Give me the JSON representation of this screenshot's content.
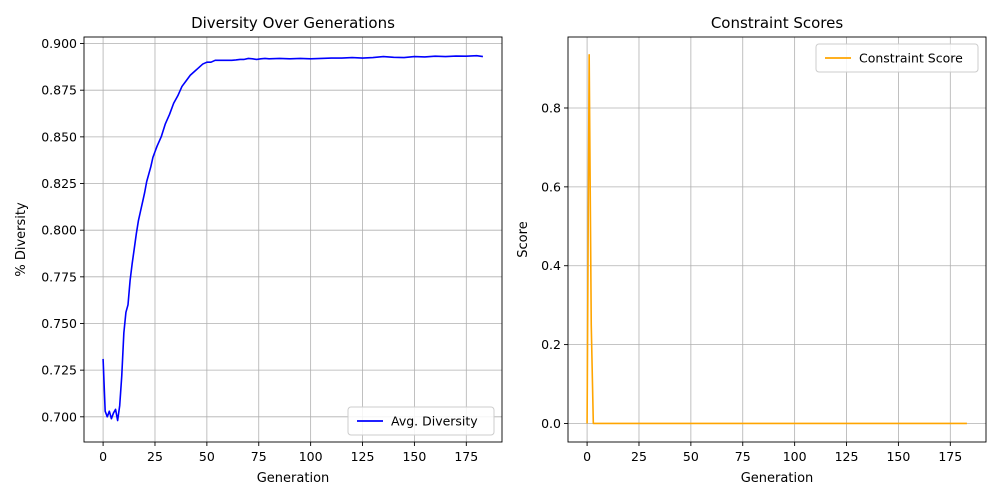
{
  "chart_data": [
    {
      "type": "line",
      "title": "Diversity Over Generations",
      "xlabel": "Generation",
      "ylabel": "% Diversity",
      "xlim": [
        -9.2,
        192.2
      ],
      "ylim": [
        0.6865,
        0.9035
      ],
      "xticks": [
        0,
        25,
        50,
        75,
        100,
        125,
        150,
        175
      ],
      "yticks": [
        0.7,
        0.725,
        0.75,
        0.775,
        0.8,
        0.825,
        0.85,
        0.875,
        0.9
      ],
      "ytick_labels": [
        "0.700",
        "0.725",
        "0.750",
        "0.775",
        "0.800",
        "0.825",
        "0.850",
        "0.875",
        "0.900"
      ],
      "grid": true,
      "legend": "lower-right",
      "series": [
        {
          "name": "Avg. Diversity",
          "color": "#0000ff",
          "x": [
            0,
            1,
            2,
            3,
            4,
            5,
            6,
            7,
            8,
            9,
            10,
            11,
            12,
            13,
            14,
            15,
            16,
            17,
            18,
            19,
            20,
            21,
            22,
            23,
            24,
            25,
            26,
            28,
            30,
            32,
            34,
            36,
            38,
            40,
            42,
            44,
            46,
            48,
            50,
            52,
            54,
            56,
            58,
            60,
            62,
            64,
            66,
            68,
            70,
            72,
            74,
            76,
            78,
            80,
            85,
            90,
            95,
            100,
            105,
            110,
            115,
            120,
            125,
            130,
            135,
            140,
            145,
            150,
            155,
            160,
            165,
            170,
            175,
            180,
            183
          ],
          "values": [
            0.731,
            0.703,
            0.7,
            0.703,
            0.699,
            0.702,
            0.704,
            0.698,
            0.706,
            0.722,
            0.745,
            0.756,
            0.76,
            0.773,
            0.782,
            0.79,
            0.798,
            0.805,
            0.81,
            0.815,
            0.82,
            0.826,
            0.83,
            0.834,
            0.839,
            0.842,
            0.845,
            0.85,
            0.857,
            0.862,
            0.868,
            0.872,
            0.877,
            0.88,
            0.883,
            0.885,
            0.887,
            0.889,
            0.89,
            0.89,
            0.891,
            0.891,
            0.891,
            0.891,
            0.891,
            0.8912,
            0.8915,
            0.8915,
            0.892,
            0.8918,
            0.8915,
            0.8918,
            0.892,
            0.8918,
            0.892,
            0.8918,
            0.892,
            0.8918,
            0.892,
            0.8922,
            0.8922,
            0.8925,
            0.8922,
            0.8925,
            0.893,
            0.8926,
            0.8925,
            0.893,
            0.8928,
            0.8932,
            0.893,
            0.8933,
            0.8932,
            0.8935,
            0.893
          ]
        }
      ]
    },
    {
      "type": "line",
      "title": "Constraint Scores",
      "xlabel": "Generation",
      "ylabel": "Score",
      "xlim": [
        -9.2,
        192.2
      ],
      "ylim": [
        -0.047,
        0.98
      ],
      "xticks": [
        0,
        25,
        50,
        75,
        100,
        125,
        150,
        175
      ],
      "yticks": [
        0.0,
        0.2,
        0.4,
        0.6,
        0.8
      ],
      "ytick_labels": [
        "0.0",
        "0.2",
        "0.4",
        "0.6",
        "0.8"
      ],
      "grid": true,
      "legend": "upper-right",
      "series": [
        {
          "name": "Constraint Score",
          "color": "#ffa500",
          "x": [
            0,
            1,
            2,
            3,
            4,
            10,
            50,
            100,
            150,
            183
          ],
          "values": [
            0.0,
            0.935,
            0.25,
            0.0,
            0.0,
            0.0,
            0.0,
            0.0,
            0.0,
            0.0
          ]
        }
      ]
    }
  ]
}
